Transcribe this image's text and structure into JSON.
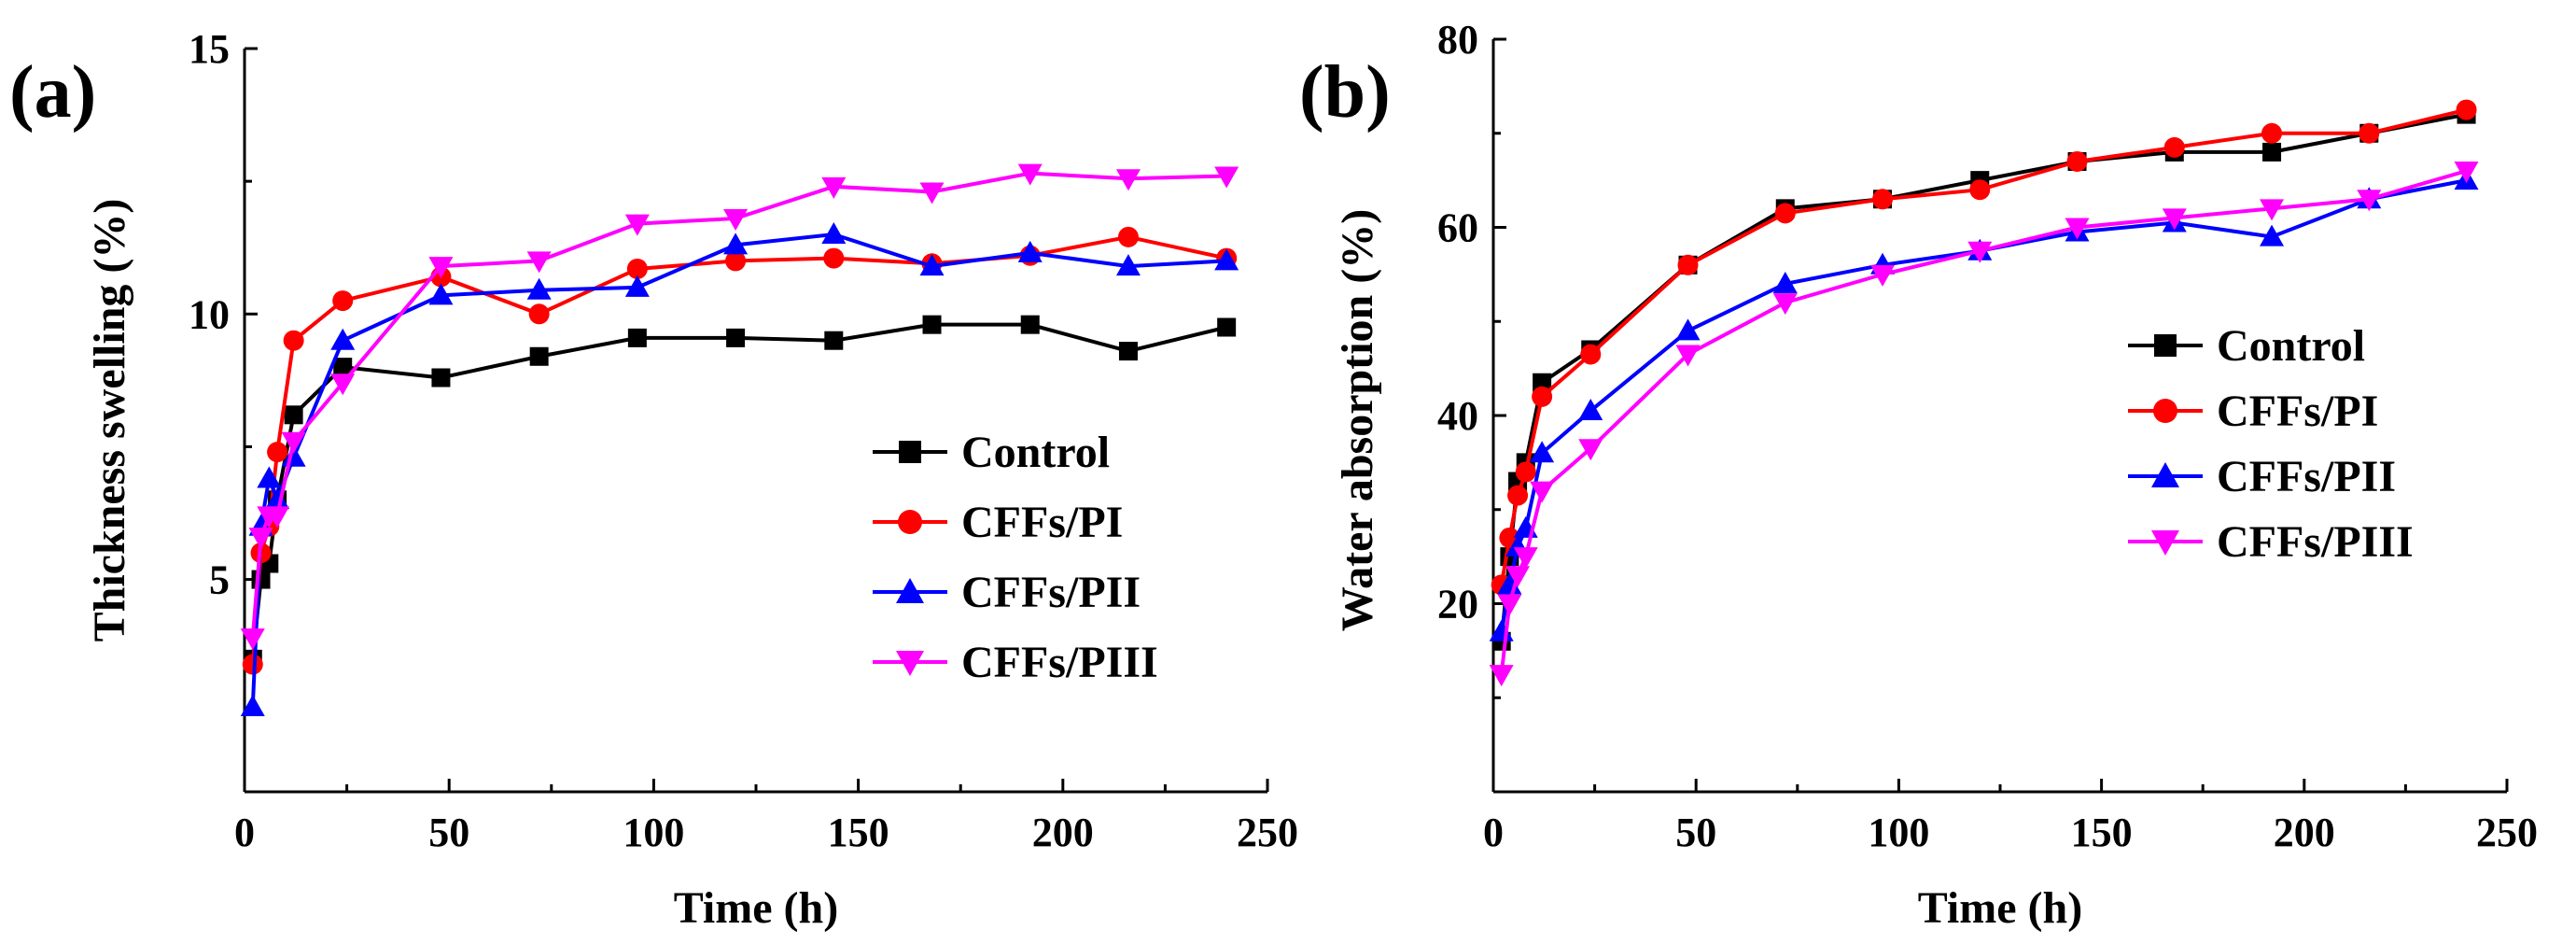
{
  "chart_data": [
    {
      "type": "line",
      "panel_label": "(a)",
      "xlabel": "Time (h)",
      "ylabel": "Thickness swelling (%)",
      "xlim": [
        0,
        250
      ],
      "ylim": [
        1.0,
        15
      ],
      "xticks": [
        0,
        50,
        100,
        150,
        200,
        250
      ],
      "yticks": [
        5,
        10,
        15
      ],
      "x_tick_labels": [
        "0",
        "50",
        "100",
        "150",
        "200",
        "250"
      ],
      "y_tick_labels": [
        "5",
        "10",
        "15"
      ],
      "legend_position": "lower-right",
      "series": [
        {
          "name": "Control",
          "marker": "square",
          "color": "#000000",
          "x": [
            2,
            4,
            6,
            8,
            12,
            24,
            48,
            72,
            96,
            120,
            144,
            168,
            192,
            216,
            240
          ],
          "y": [
            3.5,
            5.0,
            5.3,
            6.5,
            8.1,
            9.0,
            8.8,
            9.2,
            9.55,
            9.55,
            9.5,
            9.8,
            9.8,
            9.3,
            9.75
          ]
        },
        {
          "name": "CFFs/PI",
          "marker": "circle",
          "color": "#ff0000",
          "x": [
            2,
            4,
            6,
            8,
            12,
            24,
            48,
            72,
            96,
            120,
            144,
            168,
            192,
            216,
            240
          ],
          "y": [
            3.4,
            5.5,
            6.0,
            7.4,
            9.5,
            10.25,
            10.7,
            10.0,
            10.85,
            11.0,
            11.05,
            10.95,
            11.1,
            11.45,
            11.05
          ]
        },
        {
          "name": "CFFs/PII",
          "marker": "triangle-up",
          "color": "#0000ff",
          "x": [
            2,
            4,
            6,
            8,
            12,
            24,
            48,
            72,
            96,
            120,
            144,
            168,
            192,
            216,
            240
          ],
          "y": [
            2.6,
            6.0,
            6.9,
            6.5,
            7.3,
            9.5,
            10.35,
            10.45,
            10.5,
            11.3,
            11.5,
            10.9,
            11.15,
            10.9,
            11.0
          ]
        },
        {
          "name": "CFFs/PIII",
          "marker": "triangle-down",
          "color": "#ff00ff",
          "x": [
            2,
            4,
            6,
            8,
            12,
            24,
            48,
            72,
            96,
            120,
            144,
            168,
            192,
            216,
            240
          ],
          "y": [
            3.9,
            5.8,
            6.2,
            6.2,
            7.6,
            8.7,
            10.9,
            11.0,
            11.7,
            11.8,
            12.4,
            12.3,
            12.65,
            12.55,
            12.6
          ]
        }
      ]
    },
    {
      "type": "line",
      "panel_label": "(b)",
      "xlabel": "Time (h)",
      "ylabel": "Water absorption (%)",
      "xlim": [
        0,
        250
      ],
      "ylim": [
        0,
        80
      ],
      "xticks": [
        0,
        50,
        100,
        150,
        200,
        250
      ],
      "yticks": [
        20,
        40,
        60,
        80
      ],
      "x_tick_labels": [
        "0",
        "50",
        "100",
        "150",
        "200",
        "250"
      ],
      "y_tick_labels": [
        "20",
        "40",
        "60",
        "80"
      ],
      "legend_position": "center-right",
      "series": [
        {
          "name": "Control",
          "marker": "square",
          "color": "#000000",
          "x": [
            2,
            4,
            6,
            8,
            12,
            24,
            48,
            72,
            96,
            120,
            144,
            168,
            192,
            216,
            240
          ],
          "y": [
            16,
            25,
            33,
            35,
            43.5,
            47,
            56,
            62,
            63,
            65,
            67,
            68,
            68,
            70,
            72
          ]
        },
        {
          "name": "CFFs/PI",
          "marker": "circle",
          "color": "#ff0000",
          "x": [
            2,
            4,
            6,
            8,
            12,
            24,
            48,
            72,
            96,
            120,
            144,
            168,
            192,
            216,
            240
          ],
          "y": [
            22,
            27,
            31.5,
            34,
            42,
            46.5,
            56,
            61.5,
            63,
            64,
            67,
            68.5,
            70,
            70,
            72.5
          ]
        },
        {
          "name": "CFFs/PII",
          "marker": "triangle-up",
          "color": "#0000ff",
          "x": [
            2,
            4,
            6,
            8,
            12,
            24,
            48,
            72,
            96,
            120,
            144,
            168,
            192,
            216,
            240
          ],
          "y": [
            17,
            22,
            26,
            28,
            36,
            40.5,
            49,
            54,
            56,
            57.5,
            59.5,
            60.5,
            59,
            63,
            65
          ]
        },
        {
          "name": "CFFs/PIII",
          "marker": "triangle-down",
          "color": "#ff00ff",
          "x": [
            2,
            4,
            6,
            8,
            12,
            24,
            48,
            72,
            96,
            120,
            144,
            168,
            192,
            216,
            240
          ],
          "y": [
            12.5,
            20,
            23,
            25,
            32,
            36.5,
            46.5,
            52,
            55,
            57.5,
            60,
            61,
            62,
            63,
            66
          ]
        }
      ]
    }
  ]
}
